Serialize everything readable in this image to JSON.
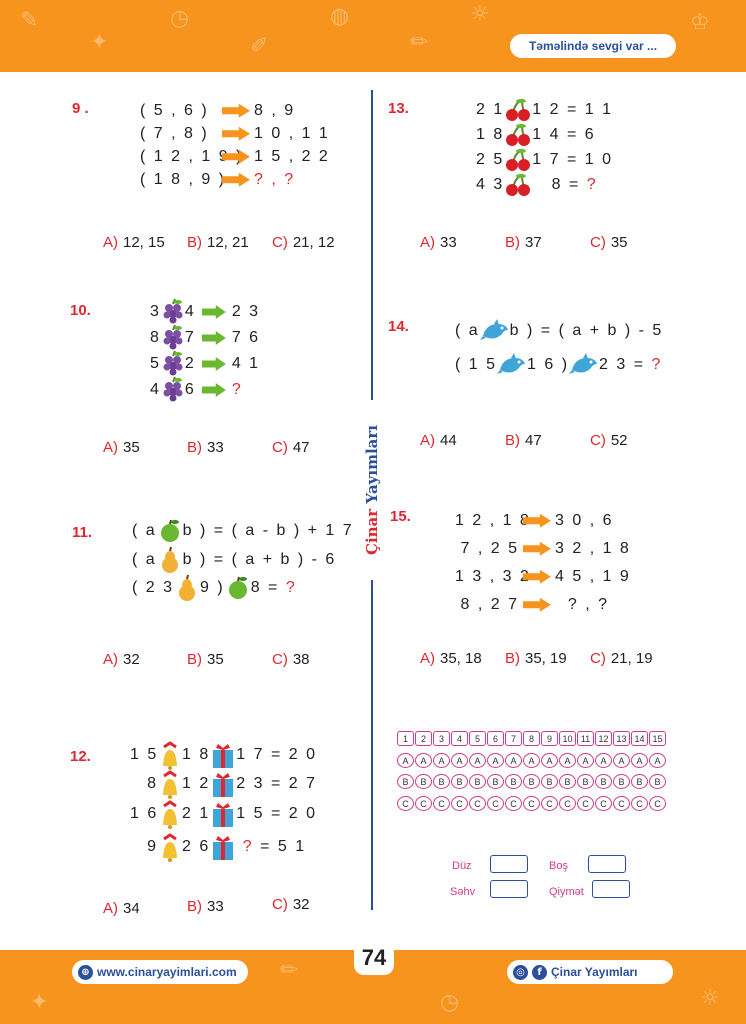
{
  "header": {
    "slogan": "Təməlində sevgi var ..."
  },
  "brand_vertical": {
    "part1": "Çinar",
    "part2": "Yayımları"
  },
  "questions": {
    "q9": {
      "num": "9 .",
      "lines": [
        {
          "left": "( 5 , 6 )",
          "right": "8 , 9"
        },
        {
          "left": "( 7 , 8 )",
          "right": "1 0 , 1 1"
        },
        {
          "left": "( 1 2 , 1 9 )",
          "right": "1 5 , 2 2"
        },
        {
          "left": "( 1 8 , 9 )",
          "right": "? , ?"
        }
      ],
      "options": {
        "A": "12, 15",
        "B": "12, 21",
        "C": "21, 12"
      }
    },
    "q10": {
      "num": "10.",
      "lines": [
        {
          "a": "3",
          "b": "4",
          "r": "2 3"
        },
        {
          "a": "8",
          "b": "7",
          "r": "7 6"
        },
        {
          "a": "5",
          "b": "2",
          "r": "4 1"
        },
        {
          "a": "4",
          "b": "6",
          "r": "?"
        }
      ],
      "options": {
        "A": "35",
        "B": "33",
        "C": "47"
      }
    },
    "q11": {
      "num": "11.",
      "lines": [
        {
          "a": "( a",
          "b": "b ) = ( a - b ) + 1 7"
        },
        {
          "a": "( a",
          "b": "b ) = ( a + b ) - 6"
        },
        {
          "a": "( 2 3",
          "b": "9 )",
          "c": "8 =",
          "q": "?"
        }
      ],
      "options": {
        "A": "32",
        "B": "35",
        "C": "38"
      }
    },
    "q12": {
      "num": "12.",
      "lines": [
        {
          "a": "1 5",
          "b": "1 8",
          "c": "1 7 = 2 0"
        },
        {
          "a": "8",
          "b": "1 2",
          "c": "2 3 = 2 7"
        },
        {
          "a": "1 6",
          "b": "2 1",
          "c": "1 5 = 2 0"
        },
        {
          "a": "9",
          "b": "2 6",
          "q": "?",
          "c": "= 5 1"
        }
      ],
      "options": {
        "A": "34",
        "B": "33",
        "C": "32"
      }
    },
    "q13": {
      "num": "13.",
      "lines": [
        {
          "a": "2 1",
          "b": "1 2 = 1 1"
        },
        {
          "a": "1 8",
          "b": "1 4 = 6"
        },
        {
          "a": "2 5",
          "b": "1 7 = 1 0"
        },
        {
          "a": "4 3",
          "b": "8 =",
          "q": "?"
        }
      ],
      "options": {
        "A": "33",
        "B": "37",
        "C": "35"
      }
    },
    "q14": {
      "num": "14.",
      "lines": [
        {
          "a": "( a",
          "b": "b ) = ( a + b ) - 5"
        },
        {
          "a": "( 1 5",
          "b": "1 6 )",
          "c": "2 3 =",
          "q": "?"
        }
      ],
      "options": {
        "A": "44",
        "B": "47",
        "C": "52"
      }
    },
    "q15": {
      "num": "15.",
      "lines": [
        {
          "left": "1 2 , 1 8",
          "right": "3 0 , 6"
        },
        {
          "left": "7 , 2 5",
          "right": "3 2 , 1 8"
        },
        {
          "left": "1 3 , 3 2",
          "right": "4 5 , 1 9"
        },
        {
          "left": "8 , 2 7",
          "right": "? ,  ?"
        }
      ],
      "options": {
        "A": "35, 18",
        "B": "35, 19",
        "C": "21, 19"
      }
    }
  },
  "answer_key": {
    "numbers": [
      "1",
      "2",
      "3",
      "4",
      "5",
      "6",
      "7",
      "8",
      "9",
      "10",
      "11",
      "12",
      "13",
      "14",
      "15"
    ],
    "rows": [
      "A",
      "B",
      "C"
    ]
  },
  "scoring": {
    "duz": "Düz",
    "bos": "Boş",
    "sehv": "Səhv",
    "qiymet": "Qiymət"
  },
  "footer": {
    "page_number": "74",
    "website": "www.cinaryayimlari.com",
    "publisher": "Çinar Yayımları"
  },
  "colors": {
    "orange": "#f7941d",
    "red": "#e0262f",
    "blue": "#2b4f9c",
    "pink": "#d23a8a"
  }
}
